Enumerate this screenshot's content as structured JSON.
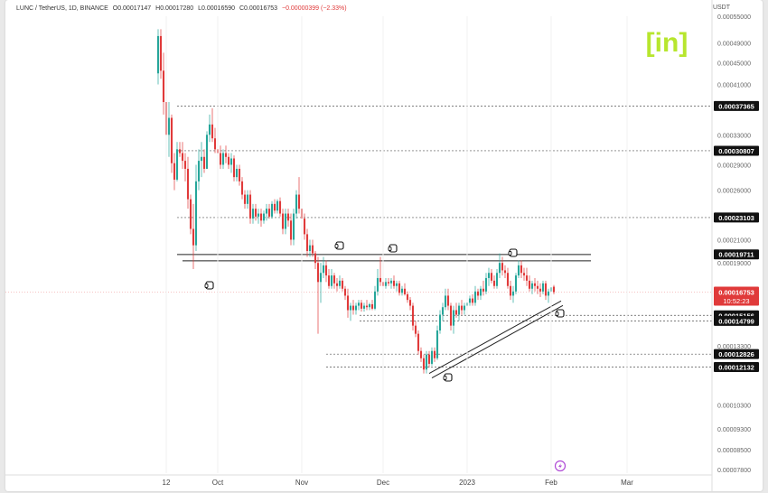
{
  "header": {
    "symbol": "LUNC / TetherUS, 1D, BINANCE",
    "open": "O0.00017147",
    "high": "H0.00017280",
    "low": "L0.00016590",
    "close": "C0.00016753",
    "change": "−0.00000399 (−2.33%)"
  },
  "brand": {
    "logo": "[in]",
    "color": "#b7e62e"
  },
  "colors": {
    "up": "#26a69a",
    "down": "#e03a3a",
    "line": "#222222",
    "bg": "#ffffff",
    "label_bg": "#111111"
  },
  "price_axis": {
    "unit": "USDT",
    "ticks": [
      "0.00055000",
      "0.00049000",
      "0.00045000",
      "0.00041000",
      "0.00033000",
      "0.00029000",
      "0.00026000",
      "0.00021000",
      "0.00019000",
      "0.00013300",
      "0.00010300",
      "0.00009300",
      "0.00008500",
      "0.00007800"
    ],
    "boxed_labels": [
      "0.00037365",
      "0.00030807",
      "0.00023103",
      "0.00019711",
      "0.00015156",
      "0.00014799",
      "0.00012826",
      "0.00012132"
    ],
    "current_price": "0.00016753",
    "countdown": "10:52:23"
  },
  "time_axis": {
    "labels": [
      "12",
      "Oct",
      "Nov",
      "Dec",
      "2023",
      "Feb",
      "Mar"
    ]
  },
  "chart_data": {
    "type": "candlestick",
    "title": "LUNC / TetherUS, 1D, BINANCE",
    "ylabel": "USDT",
    "ylim": [
      7.8e-05,
      0.00055
    ],
    "y_scale": "log",
    "x_range": [
      "2022-09-10",
      "2023-03-05"
    ],
    "current_price": 0.00016753,
    "horizontal_levels": [
      0.00037365,
      0.00030807,
      0.00023103,
      0.00019711,
      0.00015156,
      0.00014799,
      0.00012826,
      0.00012132
    ],
    "annotations": [
      {
        "type": "resistance_channel",
        "level": 0.000194,
        "from": "2022-09-24",
        "to": "2023-02-08"
      },
      {
        "type": "rising_support",
        "from": [
          "2022-12-18",
          0.000118
        ],
        "to": [
          "2023-02-02",
          0.00016
        ]
      }
    ],
    "candles": [
      [
        "2022-09-09",
        0.00043,
        0.00052,
        0.00041,
        0.000505
      ],
      [
        "2022-09-10",
        0.000505,
        0.00052,
        0.00042,
        0.000435
      ],
      [
        "2022-09-11",
        0.000435,
        0.00047,
        0.00036,
        0.00038
      ],
      [
        "2022-09-12",
        0.00038,
        0.00042,
        0.00032,
        0.00033
      ],
      [
        "2022-09-13",
        0.00033,
        0.00038,
        0.0003,
        0.000355
      ],
      [
        "2022-09-14",
        0.000355,
        0.00036,
        0.00028,
        0.000292
      ],
      [
        "2022-09-15",
        0.000292,
        0.000305,
        0.00026,
        0.000272
      ],
      [
        "2022-09-16",
        0.000272,
        0.00032,
        0.00027,
        0.00031
      ],
      [
        "2022-09-17",
        0.00031,
        0.00032,
        0.0003,
        0.000305
      ],
      [
        "2022-09-18",
        0.000305,
        0.00032,
        0.000285,
        0.000295
      ],
      [
        "2022-09-19",
        0.000295,
        0.000305,
        0.00027,
        0.000285
      ],
      [
        "2022-09-20",
        0.000285,
        0.0003,
        0.00024,
        0.00025
      ],
      [
        "2022-09-21",
        0.00025,
        0.000255,
        0.000215,
        0.00022
      ],
      [
        "2022-09-22",
        0.00022,
        0.000245,
        0.000185,
        0.000205
      ],
      [
        "2022-09-23",
        0.000205,
        0.00029,
        0.0002,
        0.00027
      ],
      [
        "2022-09-24",
        0.00027,
        0.00031,
        0.00026,
        0.000295
      ],
      [
        "2022-09-25",
        0.000295,
        0.00032,
        0.000275,
        0.0003
      ],
      [
        "2022-09-26",
        0.0003,
        0.00031,
        0.00028,
        0.000285
      ],
      [
        "2022-09-27",
        0.000285,
        0.000335,
        0.000285,
        0.00033
      ],
      [
        "2022-09-28",
        0.00033,
        0.00036,
        0.00032,
        0.000345
      ],
      [
        "2022-09-29",
        0.000345,
        0.00037,
        0.00032,
        0.000325
      ],
      [
        "2022-09-30",
        0.000325,
        0.00034,
        0.000305,
        0.00031
      ],
      [
        "2022-10-01",
        0.00031,
        0.00032,
        0.000295,
        0.000305
      ],
      [
        "2022-10-02",
        0.000305,
        0.000315,
        0.000285,
        0.00029
      ],
      [
        "2022-10-03",
        0.00029,
        0.00031,
        0.000285,
        0.000305
      ],
      [
        "2022-10-04",
        0.000305,
        0.000315,
        0.000292,
        0.0003
      ],
      [
        "2022-10-05",
        0.0003,
        0.000305,
        0.000285,
        0.00029
      ],
      [
        "2022-10-06",
        0.00029,
        0.000305,
        0.00028,
        0.000298
      ],
      [
        "2022-10-07",
        0.000298,
        0.000302,
        0.00027,
        0.000275
      ],
      [
        "2022-10-08",
        0.000275,
        0.00029,
        0.00027,
        0.000285
      ],
      [
        "2022-10-09",
        0.000285,
        0.00029,
        0.000265,
        0.00027
      ],
      [
        "2022-10-10",
        0.00027,
        0.000275,
        0.00025,
        0.000255
      ],
      [
        "2022-10-11",
        0.000255,
        0.00026,
        0.00024,
        0.000245
      ],
      [
        "2022-10-12",
        0.000245,
        0.00026,
        0.00024,
        0.000255
      ],
      [
        "2022-10-13",
        0.000255,
        0.00026,
        0.000225,
        0.00023
      ],
      [
        "2022-10-14",
        0.00023,
        0.000245,
        0.000225,
        0.00024
      ],
      [
        "2022-10-15",
        0.00024,
        0.000245,
        0.000228,
        0.000232
      ],
      [
        "2022-10-16",
        0.000232,
        0.00024,
        0.000225,
        0.000235
      ],
      [
        "2022-10-17",
        0.000235,
        0.00024,
        0.000222,
        0.000228
      ],
      [
        "2022-10-18",
        0.000228,
        0.000238,
        0.000225,
        0.000235
      ],
      [
        "2022-10-19",
        0.000235,
        0.000245,
        0.000228,
        0.00024
      ],
      [
        "2022-10-20",
        0.00024,
        0.000245,
        0.00023,
        0.000232
      ],
      [
        "2022-10-21",
        0.000232,
        0.000248,
        0.00023,
        0.000245
      ],
      [
        "2022-10-22",
        0.000245,
        0.00025,
        0.000235,
        0.000238
      ],
      [
        "2022-10-23",
        0.000238,
        0.00025,
        0.000235,
        0.000248
      ],
      [
        "2022-10-24",
        0.000248,
        0.000252,
        0.000232,
        0.000235
      ],
      [
        "2022-10-25",
        0.000235,
        0.00024,
        0.000215,
        0.00022
      ],
      [
        "2022-10-26",
        0.00022,
        0.00024,
        0.000215,
        0.000235
      ],
      [
        "2022-10-27",
        0.000235,
        0.00024,
        0.000222,
        0.000228
      ],
      [
        "2022-10-28",
        0.000228,
        0.000235,
        0.000205,
        0.00021
      ],
      [
        "2022-10-29",
        0.00021,
        0.00024,
        0.000205,
        0.000235
      ],
      [
        "2022-10-30",
        0.000235,
        0.00026,
        0.00023,
        0.000255
      ],
      [
        "2022-10-31",
        0.000255,
        0.000275,
        0.000235,
        0.00024
      ],
      [
        "2022-11-01",
        0.00024,
        0.000245,
        0.000225,
        0.00023
      ],
      [
        "2022-11-02",
        0.00023,
        0.000235,
        0.00021,
        0.000215
      ],
      [
        "2022-11-03",
        0.000215,
        0.00022,
        0.000195,
        0.0002
      ],
      [
        "2022-11-04",
        0.0002,
        0.00021,
        0.000195,
        0.000205
      ],
      [
        "2022-11-05",
        0.000205,
        0.00021,
        0.000195,
        0.000198
      ],
      [
        "2022-11-06",
        0.000198,
        0.0002,
        0.000185,
        0.00019
      ],
      [
        "2022-11-07",
        0.00019,
        0.000195,
        0.00014,
        0.000175
      ],
      [
        "2022-11-08",
        0.000175,
        0.00019,
        0.00016,
        0.000182
      ],
      [
        "2022-11-09",
        0.000182,
        0.000195,
        0.000178,
        0.000188
      ],
      [
        "2022-11-10",
        0.000188,
        0.000192,
        0.000175,
        0.00018
      ],
      [
        "2022-11-11",
        0.00018,
        0.000185,
        0.00017,
        0.000172
      ],
      [
        "2022-11-12",
        0.000172,
        0.000185,
        0.00017,
        0.00018
      ],
      [
        "2022-11-13",
        0.00018,
        0.000182,
        0.00017,
        0.000174
      ],
      [
        "2022-11-14",
        0.000174,
        0.000178,
        0.000168,
        0.000172
      ],
      [
        "2022-11-15",
        0.000172,
        0.00018,
        0.00017,
        0.000176
      ],
      [
        "2022-11-16",
        0.000176,
        0.000178,
        0.000168,
        0.00017
      ],
      [
        "2022-11-17",
        0.00017,
        0.000172,
        0.000162,
        0.000165
      ],
      [
        "2022-11-18",
        0.000165,
        0.00017,
        0.00015,
        0.000155
      ],
      [
        "2022-11-19",
        0.000155,
        0.00016,
        0.000148,
        0.000158
      ],
      [
        "2022-11-20",
        0.000158,
        0.000162,
        0.000152,
        0.000155
      ],
      [
        "2022-11-21",
        0.000155,
        0.00016,
        0.000152,
        0.000158
      ],
      [
        "2022-11-22",
        0.000158,
        0.000162,
        0.000155,
        0.00016
      ],
      [
        "2022-11-23",
        0.00016,
        0.000162,
        0.000154,
        0.000156
      ],
      [
        "2022-11-24",
        0.000156,
        0.00016,
        0.000154,
        0.000158
      ],
      [
        "2022-11-25",
        0.000158,
        0.000162,
        0.000155,
        0.000157
      ],
      [
        "2022-11-26",
        0.000157,
        0.00016,
        0.000155,
        0.000159
      ],
      [
        "2022-11-27",
        0.000159,
        0.000162,
        0.000155,
        0.000156
      ],
      [
        "2022-11-28",
        0.000156,
        0.000172,
        0.000155,
        0.000168
      ],
      [
        "2022-11-29",
        0.000168,
        0.000185,
        0.000165,
        0.000178
      ],
      [
        "2022-11-30",
        0.000178,
        0.000195,
        0.000172,
        0.000175
      ],
      [
        "2022-12-01",
        0.000175,
        0.00018,
        0.00017,
        0.000172
      ],
      [
        "2022-12-02",
        0.000172,
        0.000178,
        0.00017,
        0.000175
      ],
      [
        "2022-12-03",
        0.000175,
        0.000178,
        0.000172,
        0.000174
      ],
      [
        "2022-12-04",
        0.000174,
        0.000178,
        0.00017,
        0.000176
      ],
      [
        "2022-12-05",
        0.000176,
        0.00018,
        0.00017,
        0.000172
      ],
      [
        "2022-12-06",
        0.000172,
        0.000176,
        0.000168,
        0.000174
      ],
      [
        "2022-12-07",
        0.000174,
        0.000176,
        0.000165,
        0.000167
      ],
      [
        "2022-12-08",
        0.000167,
        0.000172,
        0.000165,
        0.00017
      ],
      [
        "2022-12-09",
        0.00017,
        0.000174,
        0.000165,
        0.000166
      ],
      [
        "2022-12-10",
        0.000166,
        0.000168,
        0.00016,
        0.000162
      ],
      [
        "2022-12-11",
        0.000162,
        0.000164,
        0.000155,
        0.000158
      ],
      [
        "2022-12-12",
        0.000158,
        0.00016,
        0.000142,
        0.000145
      ],
      [
        "2022-12-13",
        0.000145,
        0.000148,
        0.000138,
        0.00014
      ],
      [
        "2022-12-14",
        0.00014,
        0.000142,
        0.000128,
        0.00013
      ],
      [
        "2022-12-15",
        0.00013,
        0.000132,
        0.000124,
        0.000126
      ],
      [
        "2022-12-16",
        0.000126,
        0.000128,
        0.000118,
        0.00012
      ],
      [
        "2022-12-17",
        0.00012,
        0.00013,
        0.000118,
        0.000128
      ],
      [
        "2022-12-18",
        0.000128,
        0.00013,
        0.000121,
        0.000123
      ],
      [
        "2022-12-19",
        0.000123,
        0.000132,
        0.000122,
        0.00013
      ],
      [
        "2022-12-20",
        0.00013,
        0.000132,
        0.000124,
        0.000126
      ],
      [
        "2022-12-21",
        0.000126,
        0.000145,
        0.000125,
        0.000142
      ],
      [
        "2022-12-22",
        0.000142,
        0.000155,
        0.00014,
        0.000152
      ],
      [
        "2022-12-23",
        0.000152,
        0.00016,
        0.000148,
        0.000157
      ],
      [
        "2022-12-24",
        0.000157,
        0.00017,
        0.000155,
        0.000165
      ],
      [
        "2022-12-25",
        0.000165,
        0.00017,
        0.000155,
        0.000158
      ],
      [
        "2022-12-26",
        0.000158,
        0.00016,
        0.000142,
        0.000145
      ],
      [
        "2022-12-27",
        0.000145,
        0.000158,
        0.00014,
        0.000155
      ],
      [
        "2022-12-28",
        0.000155,
        0.00016,
        0.00015,
        0.000152
      ],
      [
        "2022-12-29",
        0.000152,
        0.00016,
        0.000148,
        0.000158
      ],
      [
        "2022-12-30",
        0.000158,
        0.000162,
        0.000152,
        0.000155
      ],
      [
        "2022-12-31",
        0.000155,
        0.00016,
        0.000152,
        0.000158
      ],
      [
        "2023-01-01",
        0.000158,
        0.000162,
        0.000155,
        0.00016
      ],
      [
        "2023-01-02",
        0.00016,
        0.000165,
        0.000158,
        0.000163
      ],
      [
        "2023-01-03",
        0.000163,
        0.000166,
        0.000158,
        0.00016
      ],
      [
        "2023-01-04",
        0.00016,
        0.000172,
        0.000158,
        0.000168
      ],
      [
        "2023-01-05",
        0.000168,
        0.00017,
        0.000162,
        0.000165
      ],
      [
        "2023-01-06",
        0.000165,
        0.000172,
        0.000162,
        0.00017
      ],
      [
        "2023-01-07",
        0.00017,
        0.000176,
        0.000165,
        0.000168
      ],
      [
        "2023-01-08",
        0.000168,
        0.000182,
        0.000166,
        0.000178
      ],
      [
        "2023-01-09",
        0.000178,
        0.000186,
        0.000172,
        0.000182
      ],
      [
        "2023-01-10",
        0.000182,
        0.000185,
        0.000174,
        0.000176
      ],
      [
        "2023-01-11",
        0.000176,
        0.00018,
        0.00017,
        0.000172
      ],
      [
        "2023-01-12",
        0.000172,
        0.000185,
        0.00017,
        0.000182
      ],
      [
        "2023-01-13",
        0.000182,
        0.000198,
        0.000178,
        0.00019
      ],
      [
        "2023-01-14",
        0.00019,
        0.000195,
        0.00018,
        0.000184
      ],
      [
        "2023-01-15",
        0.000184,
        0.000188,
        0.000178,
        0.000182
      ],
      [
        "2023-01-16",
        0.000182,
        0.000186,
        0.00017,
        0.000172
      ],
      [
        "2023-01-17",
        0.000172,
        0.000176,
        0.000162,
        0.000165
      ],
      [
        "2023-01-18",
        0.000165,
        0.000172,
        0.00016,
        0.000168
      ],
      [
        "2023-01-19",
        0.000168,
        0.000182,
        0.000166,
        0.00018
      ],
      [
        "2023-01-20",
        0.00018,
        0.000192,
        0.000178,
        0.000188
      ],
      [
        "2023-01-21",
        0.000188,
        0.000192,
        0.000178,
        0.000182
      ],
      [
        "2023-01-22",
        0.000182,
        0.000186,
        0.000176,
        0.00018
      ],
      [
        "2023-01-23",
        0.00018,
        0.000186,
        0.000172,
        0.000176
      ],
      [
        "2023-01-24",
        0.000176,
        0.00018,
        0.000168,
        0.00017
      ],
      [
        "2023-01-25",
        0.00017,
        0.000176,
        0.000166,
        0.000174
      ],
      [
        "2023-01-26",
        0.000174,
        0.000178,
        0.000168,
        0.000172
      ],
      [
        "2023-01-27",
        0.000172,
        0.000176,
        0.000166,
        0.00017
      ],
      [
        "2023-01-28",
        0.00017,
        0.000174,
        0.000164,
        0.000168
      ],
      [
        "2023-01-29",
        0.000168,
        0.000176,
        0.000166,
        0.000174
      ],
      [
        "2023-01-30",
        0.000174,
        0.000176,
        0.000162,
        0.000165
      ],
      [
        "2023-01-31",
        0.000165,
        0.00017,
        0.00016,
        0.000168
      ],
      [
        "2023-02-01",
        0.000168,
        0.000174,
        0.000164,
        0.000171
      ],
      [
        "2023-02-02",
        0.00017147,
        0.0001728,
        0.0001659,
        0.00016753
      ]
    ]
  }
}
